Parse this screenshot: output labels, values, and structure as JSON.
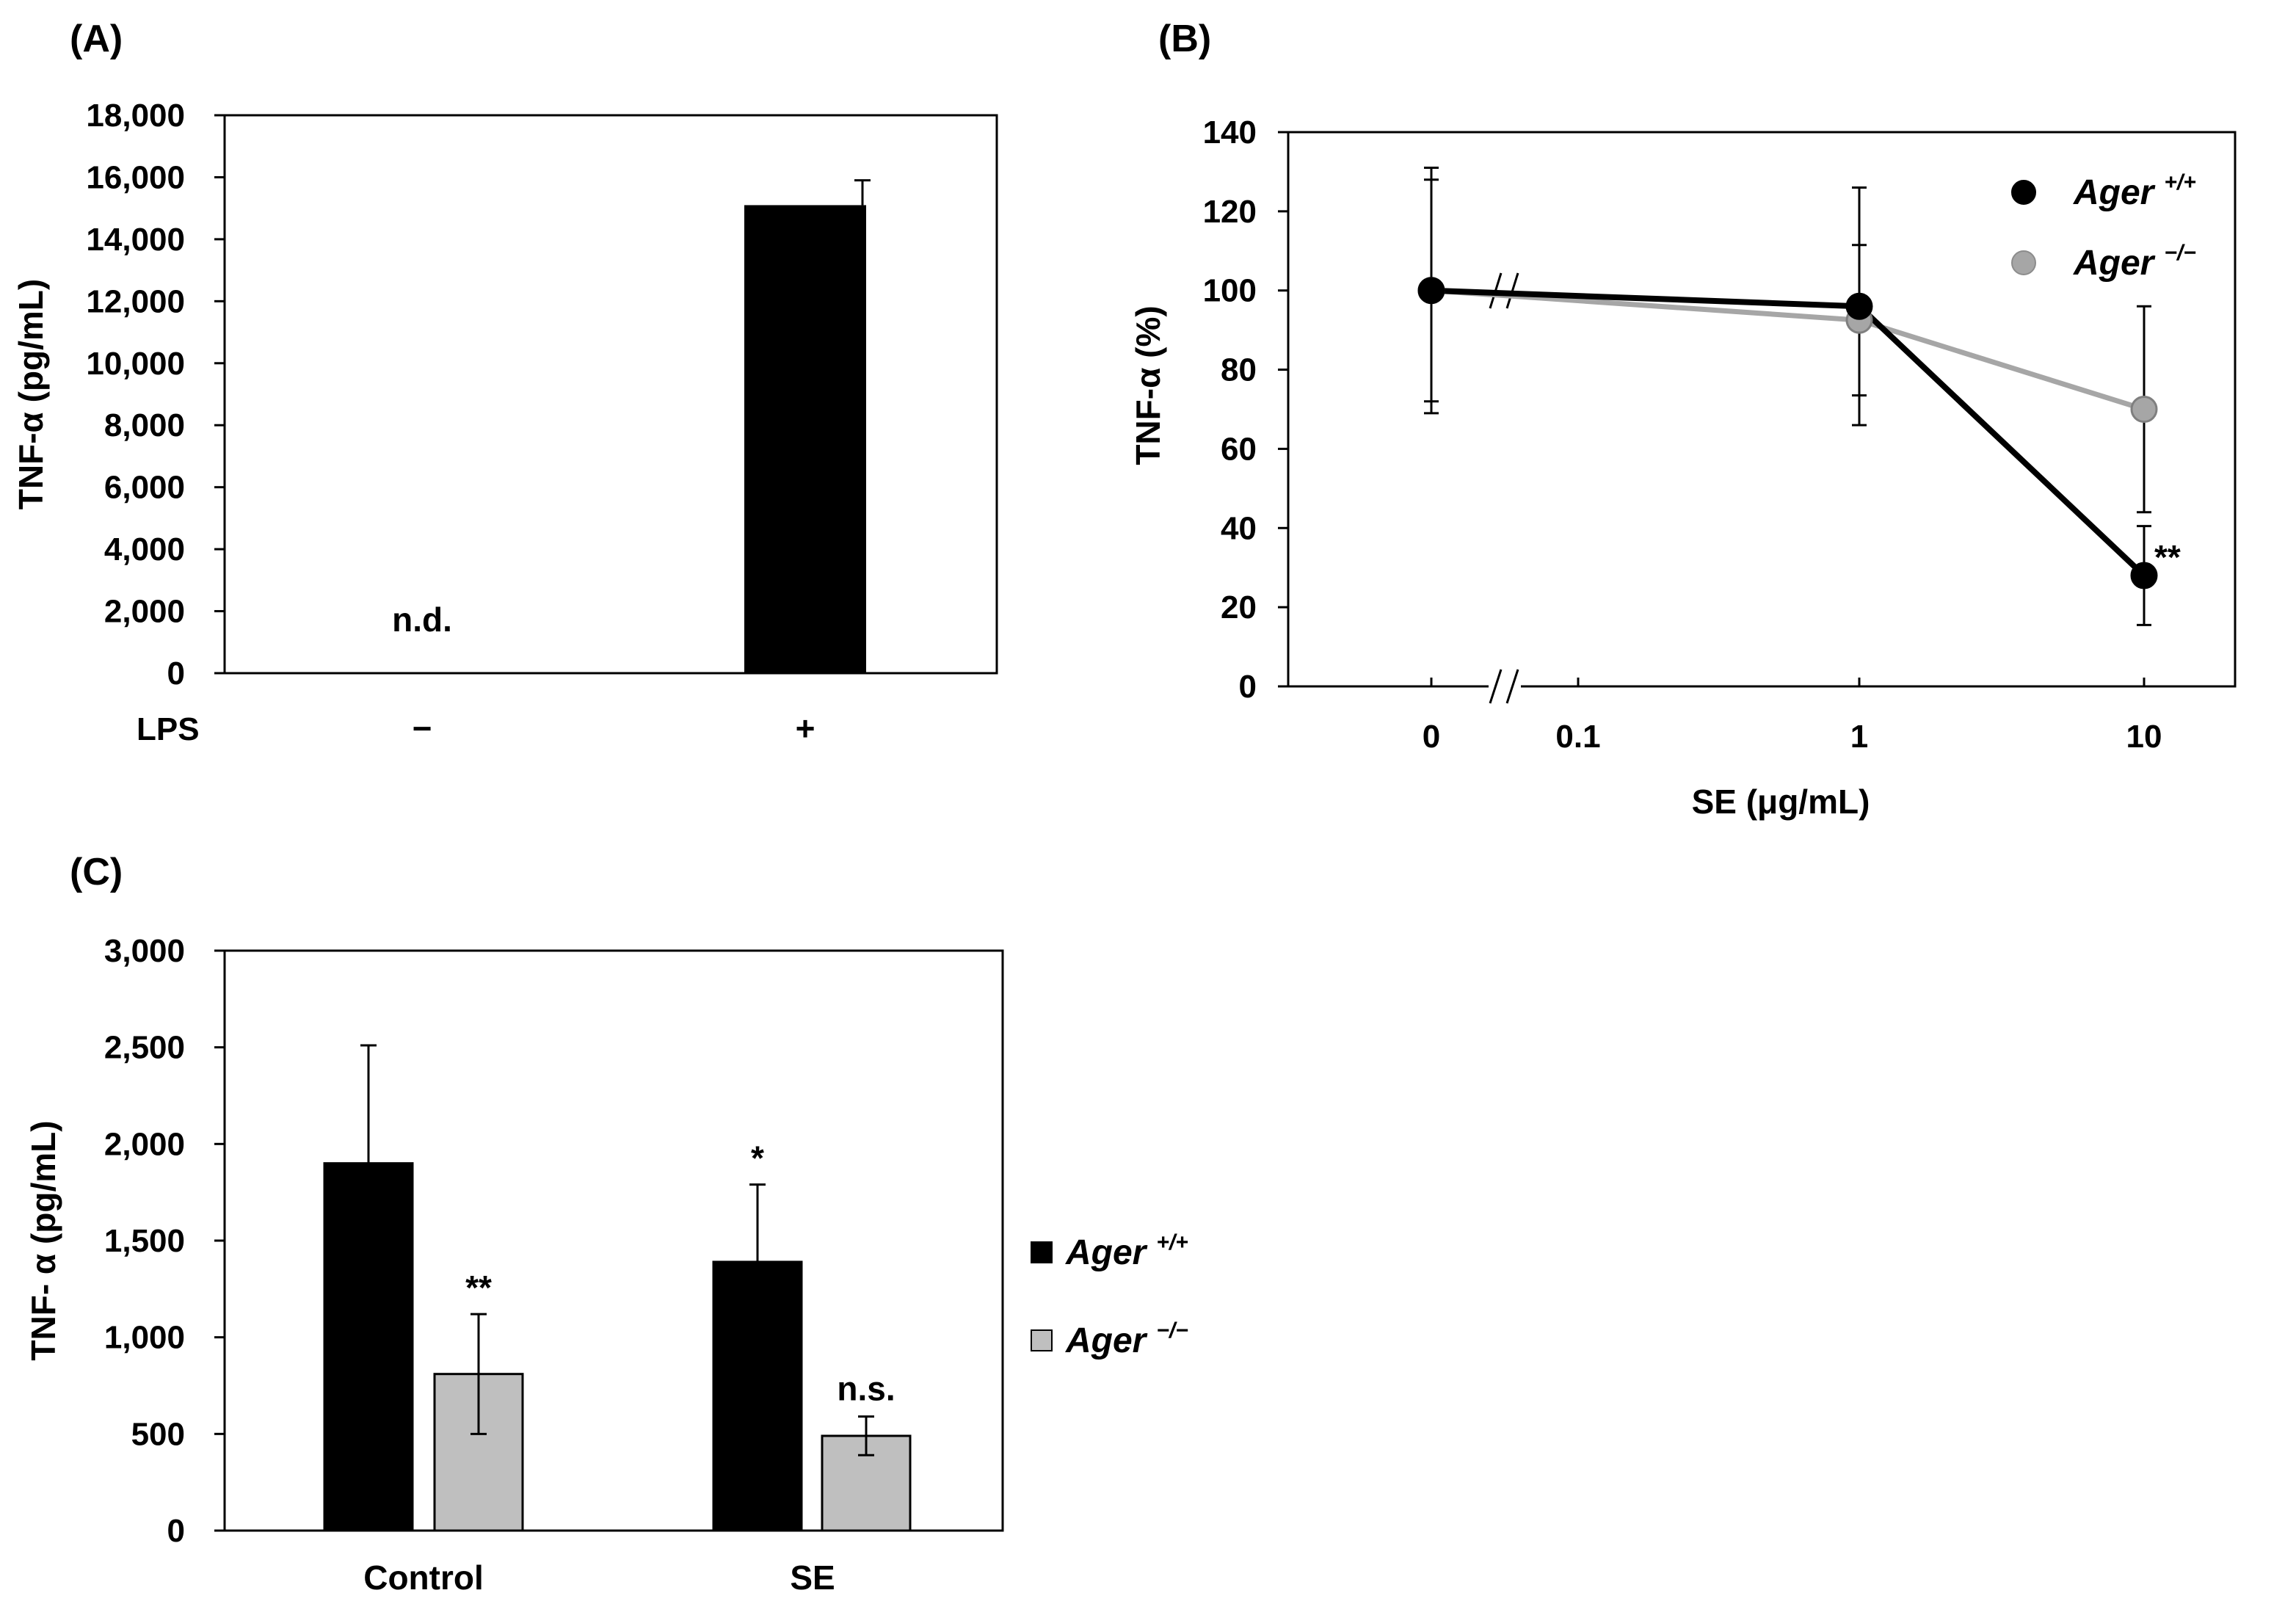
{
  "chart_data": [
    {
      "panel": "(A)",
      "type": "bar",
      "ylabel": "TNF-α (pg/mL)",
      "ylim": [
        0,
        18000
      ],
      "yticks": [
        0,
        2000,
        4000,
        6000,
        8000,
        10000,
        12000,
        14000,
        16000,
        18000
      ],
      "ytick_labels": [
        "0",
        "2,000",
        "4,000",
        "6,000",
        "8,000",
        "10,000",
        "12,000",
        "14,000",
        "16,000",
        "18,000"
      ],
      "row_label": "LPS",
      "categories": [
        "−",
        "+"
      ],
      "values": [
        0,
        15100
      ],
      "errors": [
        0,
        800
      ],
      "color": "#000000",
      "annotations": [
        "n.d.",
        ""
      ]
    },
    {
      "panel": "(B)",
      "type": "line",
      "ylabel": "TNF-α (%)",
      "xlabel": "SE (μg/mL)",
      "ylim": [
        0,
        140
      ],
      "yticks": [
        0,
        20,
        40,
        60,
        80,
        100,
        120,
        140
      ],
      "ytick_labels": [
        "0",
        "20",
        "40",
        "60",
        "80",
        "100",
        "120",
        "140"
      ],
      "x": [
        "0",
        "1",
        "10"
      ],
      "xtick_labels": [
        "0",
        "0.1",
        "1",
        "10"
      ],
      "axis_break": true,
      "series": [
        {
          "name": "Ager",
          "superscript": "+/+",
          "color": "#000000",
          "values": [
            100,
            96,
            28
          ],
          "errors": [
            31,
            30,
            12.5
          ]
        },
        {
          "name": "Ager",
          "superscript": "−/−",
          "color": "#a6a6a6",
          "values": [
            100,
            92.5,
            70
          ],
          "errors": [
            28,
            19,
            26
          ]
        }
      ],
      "annotations": [
        {
          "series": 0,
          "point": 2,
          "text": "**"
        }
      ],
      "legend": "top-right"
    },
    {
      "panel": "(C)",
      "type": "bar",
      "ylabel": "TNF- α (pg/mL)",
      "ylim": [
        0,
        3000
      ],
      "yticks": [
        0,
        500,
        1000,
        1500,
        2000,
        2500,
        3000
      ],
      "ytick_labels": [
        "0",
        "500",
        "1,000",
        "1,500",
        "2,000",
        "2,500",
        "3,000"
      ],
      "categories": [
        "Control",
        "SE"
      ],
      "series": [
        {
          "name": "Ager",
          "superscript": "+/+",
          "color": "#000000",
          "values": [
            1900,
            1390
          ],
          "errors": [
            610,
            400
          ],
          "annotations": [
            "",
            "*"
          ]
        },
        {
          "name": "Ager",
          "superscript": "−/−",
          "color": "#bfbfbf",
          "values": [
            810,
            490
          ],
          "errors": [
            310,
            100
          ],
          "annotations": [
            "**",
            "n.s."
          ]
        }
      ],
      "legend": "right"
    }
  ]
}
